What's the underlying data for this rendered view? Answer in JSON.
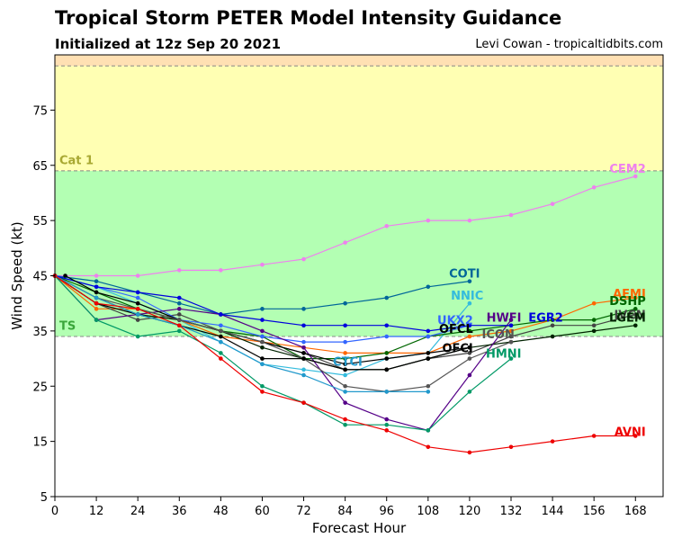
{
  "chart_data": {
    "type": "line",
    "title": "Tropical Storm PETER Model Intensity Guidance",
    "subtitle": "Initialized at 12z Sep 20 2021",
    "credit": "Levi Cowan - tropicaltidbits.com",
    "xlabel": "Forecast Hour",
    "ylabel": "Wind Speed (kt)",
    "xlim": [
      0,
      176
    ],
    "ylim": [
      5,
      85
    ],
    "x_ticks": [
      0,
      12,
      24,
      36,
      48,
      60,
      72,
      84,
      96,
      108,
      120,
      132,
      144,
      156,
      168
    ],
    "y_ticks": [
      5,
      15,
      25,
      35,
      45,
      55,
      65,
      75
    ],
    "bands": [
      {
        "name": "TS",
        "from": 34,
        "to": 64,
        "color": "#b3ffb3",
        "label_color": "#3aa63a",
        "label_y": 36
      },
      {
        "name": "Cat 1",
        "from": 64,
        "to": 83,
        "color": "#ffffb3",
        "label_color": "#a8a832",
        "label_y": 66
      },
      {
        "name": "",
        "from": 83,
        "to": 85,
        "color": "#ffe0b3",
        "label_color": "#000000",
        "label_y": 84
      }
    ],
    "band_lines": [
      34,
      64,
      83
    ],
    "series": [
      {
        "name": "CEM2",
        "color": "#ee82ee",
        "x": [
          0,
          12,
          24,
          36,
          48,
          60,
          72,
          84,
          96,
          108,
          120,
          132,
          144,
          156,
          168
        ],
        "y": [
          45,
          45,
          45,
          46,
          46,
          47,
          48,
          51,
          54,
          55,
          55,
          56,
          58,
          61,
          63
        ],
        "label_x": 171,
        "label_y": 64.5,
        "label_anchor": "end"
      },
      {
        "name": "COTI",
        "color": "#006699",
        "x": [
          0,
          12,
          24,
          36,
          48,
          60,
          72,
          84,
          96,
          108,
          120
        ],
        "y": [
          45,
          44,
          42,
          40,
          38,
          39,
          39,
          40,
          41,
          43,
          44
        ],
        "label_x": 123,
        "label_y": 45.5,
        "label_anchor": "end"
      },
      {
        "name": "NNIC",
        "color": "#33bbdd",
        "x": [
          0,
          12,
          24,
          36,
          48,
          60,
          72,
          84,
          96,
          108,
          120
        ],
        "y": [
          45,
          43,
          40,
          37,
          33,
          29,
          28,
          27,
          30,
          31,
          40
        ],
        "label_x": 124,
        "label_y": 41.5,
        "label_anchor": "end"
      },
      {
        "name": "AEMI",
        "color": "#ff6600",
        "x": [
          0,
          12,
          24,
          36,
          48,
          60,
          72,
          84,
          96,
          108,
          120,
          132,
          144,
          156,
          168
        ],
        "y": [
          45,
          39,
          39,
          37,
          34,
          33,
          32,
          31,
          31,
          31,
          34,
          35,
          37,
          40,
          41
        ],
        "label_x": 171,
        "label_y": 41.8,
        "label_anchor": "end"
      },
      {
        "name": "DSHP",
        "color": "#006600",
        "x": [
          0,
          12,
          24,
          36,
          48,
          60,
          72,
          84,
          96,
          108,
          120,
          132,
          144,
          156,
          168
        ],
        "y": [
          45,
          42,
          39,
          37,
          35,
          34,
          30,
          30,
          31,
          34,
          35,
          36,
          37,
          37,
          39
        ],
        "label_x": 171,
        "label_y": 40.5,
        "label_anchor": "end"
      },
      {
        "name": "IVCN",
        "color": "#444444",
        "x": [
          0,
          12,
          24,
          36,
          48,
          60,
          72,
          84,
          96,
          108,
          120,
          132,
          144,
          156,
          168
        ],
        "y": [
          45,
          40,
          37,
          38,
          35,
          33,
          31,
          28,
          28,
          30,
          31,
          34,
          36,
          36,
          38
        ],
        "label_x": 171,
        "label_y": 38.0,
        "label_anchor": "end"
      },
      {
        "name": "LGEM",
        "color": "#002200",
        "x": [
          0,
          12,
          24,
          36,
          48,
          60,
          72,
          84,
          96,
          108,
          120,
          132,
          144,
          156,
          168
        ],
        "y": [
          45,
          41,
          38,
          37,
          35,
          32,
          30,
          28,
          28,
          30,
          32,
          33,
          34,
          35,
          36
        ],
        "label_x": 171,
        "label_y": 37.5,
        "label_anchor": "end"
      },
      {
        "name": "UKX2",
        "color": "#3366ff",
        "x": [
          0,
          12,
          24,
          36,
          48,
          60,
          72,
          84,
          96,
          108,
          120
        ],
        "y": [
          45,
          43,
          41,
          37,
          36,
          34,
          33,
          33,
          34,
          34,
          36
        ],
        "label_x": 121,
        "label_y": 37.0,
        "label_anchor": "end"
      },
      {
        "name": "HWFI",
        "color": "#550088",
        "x": [
          0,
          12,
          24,
          36,
          48,
          60,
          72,
          84,
          96,
          108,
          120,
          132
        ],
        "y": [
          45,
          37,
          38,
          39,
          38,
          35,
          32,
          22,
          19,
          17,
          27,
          37
        ],
        "label_x": 135,
        "label_y": 37.5,
        "label_anchor": "end"
      },
      {
        "name": "EGR2",
        "color": "#0000dd",
        "x": [
          0,
          12,
          24,
          36,
          48,
          60,
          72,
          84,
          96,
          108,
          120,
          132
        ],
        "y": [
          45,
          43,
          42,
          41,
          38,
          37,
          36,
          36,
          36,
          35,
          36,
          36
        ],
        "label_x": 137,
        "label_y": 37.5,
        "label_anchor": "start"
      },
      {
        "name": "OFCL",
        "color": "#000000",
        "x": [
          3,
          12,
          24,
          36,
          48,
          60,
          72,
          84,
          96,
          108,
          120
        ],
        "y": [
          45,
          42,
          40,
          37,
          35,
          33,
          31,
          29,
          30,
          31,
          32
        ],
        "label_x": 121,
        "label_y": 35.5,
        "label_anchor": "end"
      },
      {
        "name": "ICON",
        "color": "#555555",
        "x": [
          0,
          12,
          24,
          36,
          48,
          60,
          72,
          84,
          96,
          108,
          120,
          132
        ],
        "y": [
          45,
          41,
          39,
          37,
          35,
          33,
          30,
          25,
          24,
          25,
          30,
          33
        ],
        "label_x": 133,
        "label_y": 34.5,
        "label_anchor": "end"
      },
      {
        "name": "OFCI",
        "color": "#000000",
        "x": [
          0,
          12,
          24,
          36,
          48,
          60,
          72,
          84,
          96,
          108,
          120
        ],
        "y": [
          45,
          40,
          38,
          36,
          34,
          30,
          30,
          28,
          28,
          30,
          32
        ],
        "label_x": 121,
        "label_y": 32.0,
        "label_anchor": "end"
      },
      {
        "name": "CTCI",
        "color": "#2299cc",
        "x": [
          0,
          12,
          24,
          36,
          48,
          60,
          72,
          84,
          96,
          108
        ],
        "y": [
          45,
          41,
          38,
          36,
          33,
          29,
          27,
          24,
          24,
          24
        ],
        "label_x": 89,
        "label_y": 29.5,
        "label_anchor": "end"
      },
      {
        "name": "HMNI",
        "color": "#009966",
        "x": [
          0,
          12,
          24,
          36,
          48,
          60,
          72,
          84,
          96,
          108,
          120,
          132
        ],
        "y": [
          45,
          37,
          34,
          35,
          31,
          25,
          22,
          18,
          18,
          17,
          24,
          30
        ],
        "label_x": 135,
        "label_y": 31.0,
        "label_anchor": "end"
      },
      {
        "name": "AVNI",
        "color": "#ee0000",
        "x": [
          0,
          12,
          24,
          36,
          48,
          60,
          72,
          84,
          96,
          108,
          120,
          132,
          144,
          156,
          168
        ],
        "y": [
          45,
          40,
          39,
          36,
          30,
          24,
          22,
          19,
          17,
          14,
          13,
          14,
          15,
          16,
          16
        ],
        "label_x": 171,
        "label_y": 16.8,
        "label_anchor": "end"
      }
    ]
  }
}
